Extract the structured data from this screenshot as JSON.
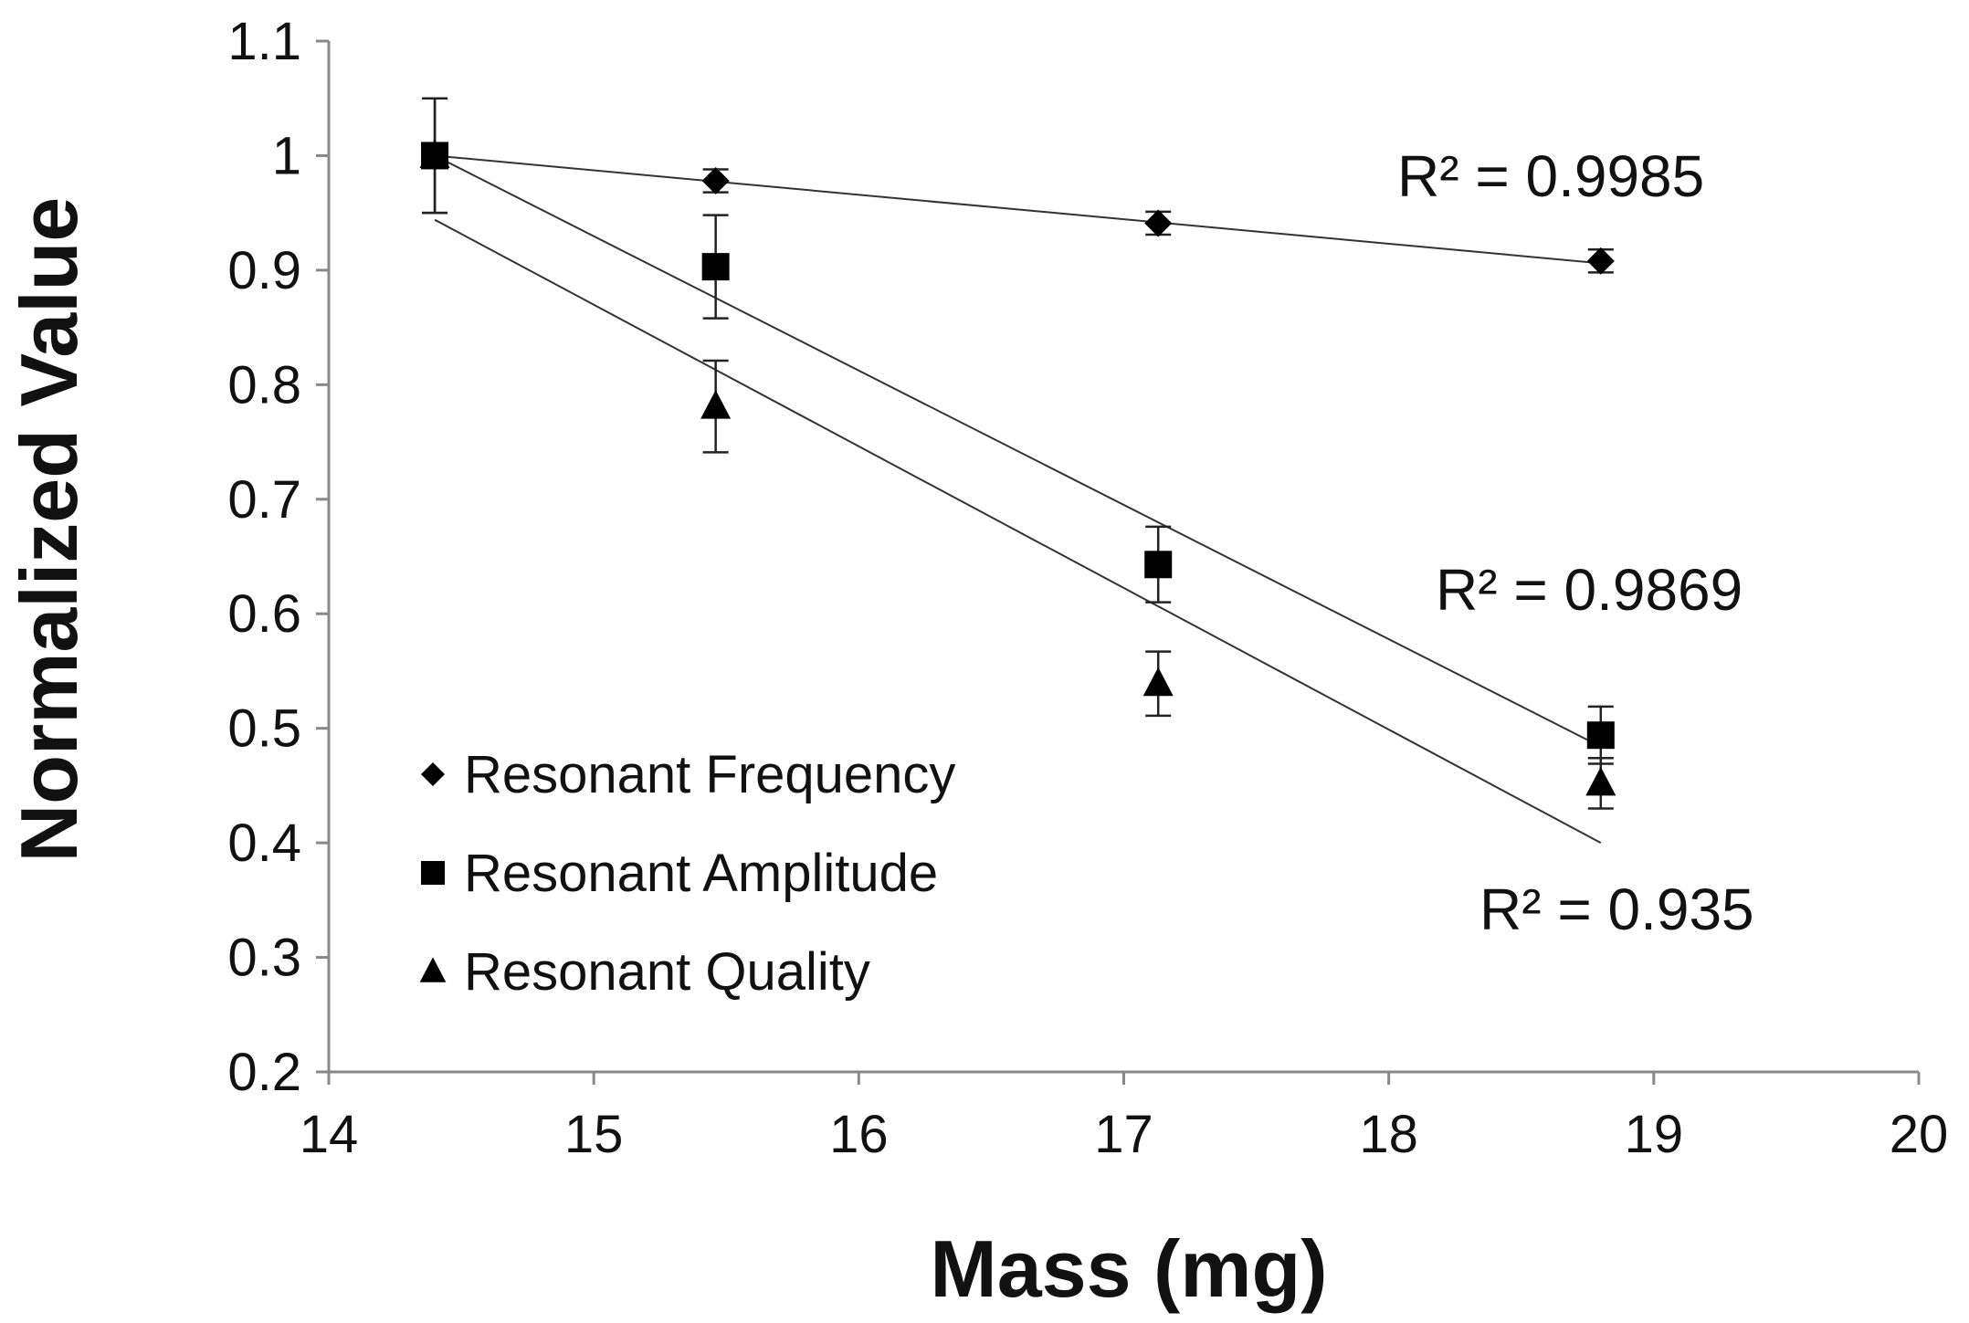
{
  "chart_data": {
    "type": "scatter",
    "title": "",
    "xlabel": "Mass (mg)",
    "ylabel": "Normalized Value",
    "xlim": [
      14,
      20
    ],
    "ylim": [
      0.2,
      1.1
    ],
    "xticks": [
      "14",
      "15",
      "16",
      "17",
      "18",
      "19",
      "20"
    ],
    "yticks": [
      "0.2",
      "0.3",
      "0.4",
      "0.5",
      "0.6",
      "0.7",
      "0.8",
      "0.9",
      "1",
      "1.1"
    ],
    "grid": false,
    "legend_position": "bottom-left",
    "x": [
      14.4,
      15.46,
      17.13,
      18.8
    ],
    "series": [
      {
        "name": "Resonant Frequency",
        "marker": "diamond",
        "values": [
          1.0,
          0.978,
          0.941,
          0.908
        ],
        "errors": [
          0.01,
          0.01,
          0.01,
          0.01
        ],
        "trendline": [
          1.0,
          0.906
        ],
        "r2_label": "R² = 0.9985"
      },
      {
        "name": "Resonant Amplitude",
        "marker": "square",
        "values": [
          1.0,
          0.903,
          0.643,
          0.494
        ],
        "errors": [
          0.05,
          0.045,
          0.033,
          0.025
        ],
        "trendline": [
          1.0,
          0.484
        ],
        "r2_label": "R² = 0.9869"
      },
      {
        "name": "Resonant Quality",
        "marker": "triangle",
        "values": [
          1.0,
          0.781,
          0.539,
          0.452
        ],
        "errors": [
          0.05,
          0.04,
          0.028,
          0.022
        ],
        "trendline": [
          0.944,
          0.4
        ],
        "r2_label": "R² = 0.935"
      }
    ]
  }
}
